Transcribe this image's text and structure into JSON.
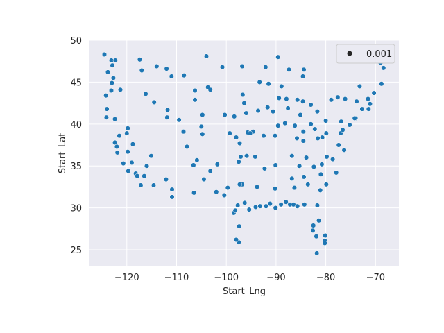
{
  "chart_data": {
    "type": "scatter",
    "title": "",
    "xlabel": "Start_Lng",
    "ylabel": "Start_Lat",
    "xlim": [
      -127.5,
      -65.3
    ],
    "ylim": [
      23.1,
      50.0
    ],
    "xticks": [
      -120,
      -110,
      -100,
      -90,
      -80,
      -70
    ],
    "yticks": [
      25,
      30,
      35,
      40,
      45,
      50
    ],
    "grid": true,
    "legend": {
      "position": "top-right",
      "entries": [
        {
          "label": "0.001",
          "marker": "circle"
        }
      ]
    },
    "colors": {
      "point": "#1f77b4",
      "point_edge": "#ffffff",
      "plot_bg": "#eaeaf2",
      "grid": "#ffffff",
      "legend_marker": "#262626"
    },
    "series": [
      {
        "points": [
          [
            -124.5,
            48.3
          ],
          [
            -123.1,
            47.6
          ],
          [
            -122.3,
            47.6
          ],
          [
            -122.7,
            45.5
          ],
          [
            -123.0,
            44.9
          ],
          [
            -123.1,
            44.0
          ],
          [
            -124.2,
            43.4
          ],
          [
            -124.0,
            41.8
          ],
          [
            -124.1,
            40.8
          ],
          [
            -122.4,
            40.6
          ],
          [
            -121.5,
            38.6
          ],
          [
            -122.4,
            37.8
          ],
          [
            -122.0,
            37.3
          ],
          [
            -121.9,
            36.6
          ],
          [
            -120.7,
            35.3
          ],
          [
            -119.7,
            34.4
          ],
          [
            -118.2,
            34.1
          ],
          [
            -117.9,
            33.8
          ],
          [
            -117.2,
            32.7
          ],
          [
            -116.5,
            33.8
          ],
          [
            -119.8,
            36.7
          ],
          [
            -119.0,
            35.4
          ],
          [
            -115.1,
            36.2
          ],
          [
            -112.1,
            33.4
          ],
          [
            -110.9,
            32.2
          ],
          [
            -111.9,
            40.8
          ],
          [
            -111.8,
            41.7
          ],
          [
            -116.2,
            43.6
          ],
          [
            -117.4,
            47.7
          ],
          [
            -112.0,
            46.6
          ],
          [
            -108.5,
            45.8
          ],
          [
            -106.3,
            42.9
          ],
          [
            -104.8,
            41.1
          ],
          [
            -105.0,
            39.7
          ],
          [
            -104.8,
            38.8
          ],
          [
            -106.6,
            35.1
          ],
          [
            -105.9,
            35.7
          ],
          [
            -106.5,
            31.8
          ],
          [
            -104.0,
            48.1
          ],
          [
            -100.8,
            46.8
          ],
          [
            -96.8,
            46.9
          ],
          [
            -96.7,
            43.5
          ],
          [
            -103.2,
            44.1
          ],
          [
            -96.0,
            41.3
          ],
          [
            -98.4,
            40.9
          ],
          [
            -97.3,
            37.7
          ],
          [
            -95.7,
            39.0
          ],
          [
            -97.5,
            35.5
          ],
          [
            -95.9,
            36.2
          ],
          [
            -96.8,
            32.8
          ],
          [
            -97.3,
            32.8
          ],
          [
            -95.4,
            29.8
          ],
          [
            -98.5,
            29.4
          ],
          [
            -97.7,
            30.3
          ],
          [
            -101.8,
            35.2
          ],
          [
            -97.4,
            27.8
          ],
          [
            -97.5,
            25.9
          ],
          [
            -93.3,
            45.0
          ],
          [
            -92.1,
            46.8
          ],
          [
            -93.6,
            41.6
          ],
          [
            -94.6,
            39.1
          ],
          [
            -90.2,
            38.6
          ],
          [
            -92.3,
            34.7
          ],
          [
            -90.1,
            35.1
          ],
          [
            -91.2,
            30.5
          ],
          [
            -90.1,
            30.0
          ],
          [
            -93.8,
            32.5
          ],
          [
            -87.9,
            43.0
          ],
          [
            -89.4,
            43.1
          ],
          [
            -87.6,
            41.9
          ],
          [
            -88.2,
            40.1
          ],
          [
            -89.6,
            39.8
          ],
          [
            -86.2,
            39.8
          ],
          [
            -85.1,
            41.1
          ],
          [
            -83.0,
            42.3
          ],
          [
            -85.7,
            42.9
          ],
          [
            -84.6,
            42.7
          ],
          [
            -83.0,
            40.0
          ],
          [
            -81.7,
            41.5
          ],
          [
            -84.5,
            39.1
          ],
          [
            -85.8,
            38.3
          ],
          [
            -84.5,
            38.0
          ],
          [
            -86.8,
            36.2
          ],
          [
            -83.9,
            36.0
          ],
          [
            -85.3,
            35.0
          ],
          [
            -86.8,
            33.5
          ],
          [
            -86.3,
            32.4
          ],
          [
            -88.0,
            30.7
          ],
          [
            -90.2,
            32.3
          ],
          [
            -84.4,
            33.7
          ],
          [
            -81.1,
            32.1
          ],
          [
            -83.6,
            32.8
          ],
          [
            -84.3,
            30.4
          ],
          [
            -81.7,
            30.3
          ],
          [
            -81.4,
            28.5
          ],
          [
            -82.5,
            27.9
          ],
          [
            -82.6,
            27.3
          ],
          [
            -81.9,
            26.6
          ],
          [
            -80.2,
            26.1
          ],
          [
            -80.2,
            25.8
          ],
          [
            -80.1,
            26.7
          ],
          [
            -81.8,
            24.6
          ],
          [
            -80.8,
            35.2
          ],
          [
            -78.6,
            35.8
          ],
          [
            -79.8,
            36.1
          ],
          [
            -77.9,
            34.2
          ],
          [
            -81.0,
            34.0
          ],
          [
            -79.9,
            32.8
          ],
          [
            -82.4,
            34.9
          ],
          [
            -77.4,
            37.5
          ],
          [
            -76.3,
            36.9
          ],
          [
            -77.0,
            38.9
          ],
          [
            -76.6,
            39.3
          ],
          [
            -75.2,
            39.9
          ],
          [
            -80.0,
            40.4
          ],
          [
            -76.9,
            40.3
          ],
          [
            -74.0,
            40.7
          ],
          [
            -73.8,
            42.7
          ],
          [
            -76.1,
            43.0
          ],
          [
            -78.9,
            42.9
          ],
          [
            -77.6,
            43.2
          ],
          [
            -74.2,
            40.7
          ],
          [
            -72.7,
            41.8
          ],
          [
            -71.4,
            41.8
          ],
          [
            -71.1,
            42.4
          ],
          [
            -71.5,
            43.0
          ],
          [
            -73.2,
            44.5
          ],
          [
            -70.3,
            43.7
          ],
          [
            -68.8,
            44.8
          ],
          [
            -68.4,
            46.7
          ],
          [
            -69.0,
            47.3
          ],
          [
            -82.2,
            39.4
          ],
          [
            -80.7,
            38.4
          ],
          [
            -79.9,
            38.9
          ],
          [
            -81.6,
            38.3
          ],
          [
            -97.1,
            36.1
          ],
          [
            -94.2,
            36.1
          ],
          [
            -92.5,
            38.6
          ],
          [
            -95.2,
            38.9
          ],
          [
            -100.3,
            41.1
          ],
          [
            -98.2,
            29.7
          ],
          [
            -96.3,
            30.6
          ],
          [
            -94.1,
            30.1
          ],
          [
            -93.2,
            30.2
          ],
          [
            -92.0,
            30.2
          ],
          [
            -89.0,
            30.4
          ],
          [
            -87.2,
            30.4
          ],
          [
            -86.5,
            30.4
          ],
          [
            -85.7,
            30.2
          ],
          [
            -123.8,
            46.2
          ],
          [
            -122.9,
            47.0
          ],
          [
            -121.3,
            44.1
          ],
          [
            -117.0,
            46.4
          ],
          [
            -114.0,
            46.9
          ],
          [
            -111.0,
            45.7
          ],
          [
            -114.5,
            42.6
          ],
          [
            -119.8,
            39.5
          ],
          [
            -120.0,
            38.9
          ],
          [
            -118.8,
            37.6
          ],
          [
            -116.0,
            35.0
          ],
          [
            -114.6,
            32.7
          ],
          [
            -109.5,
            40.5
          ],
          [
            -108.6,
            39.1
          ],
          [
            -107.9,
            37.3
          ],
          [
            -103.7,
            44.4
          ],
          [
            -106.3,
            44.0
          ],
          [
            -99.3,
            38.9
          ],
          [
            -98.0,
            38.4
          ],
          [
            -102.0,
            31.9
          ],
          [
            -100.4,
            31.5
          ],
          [
            -99.7,
            32.4
          ],
          [
            -104.5,
            33.4
          ],
          [
            -103.2,
            34.4
          ],
          [
            -96.4,
            42.5
          ],
          [
            -91.7,
            42.0
          ],
          [
            -90.6,
            41.5
          ],
          [
            -88.9,
            44.5
          ],
          [
            -91.5,
            44.8
          ],
          [
            -84.6,
            45.7
          ],
          [
            -87.4,
            46.5
          ],
          [
            -84.4,
            46.5
          ],
          [
            -89.6,
            48.0
          ],
          [
            -98.0,
            26.2
          ],
          [
            -110.9,
            31.3
          ]
        ]
      }
    ]
  }
}
